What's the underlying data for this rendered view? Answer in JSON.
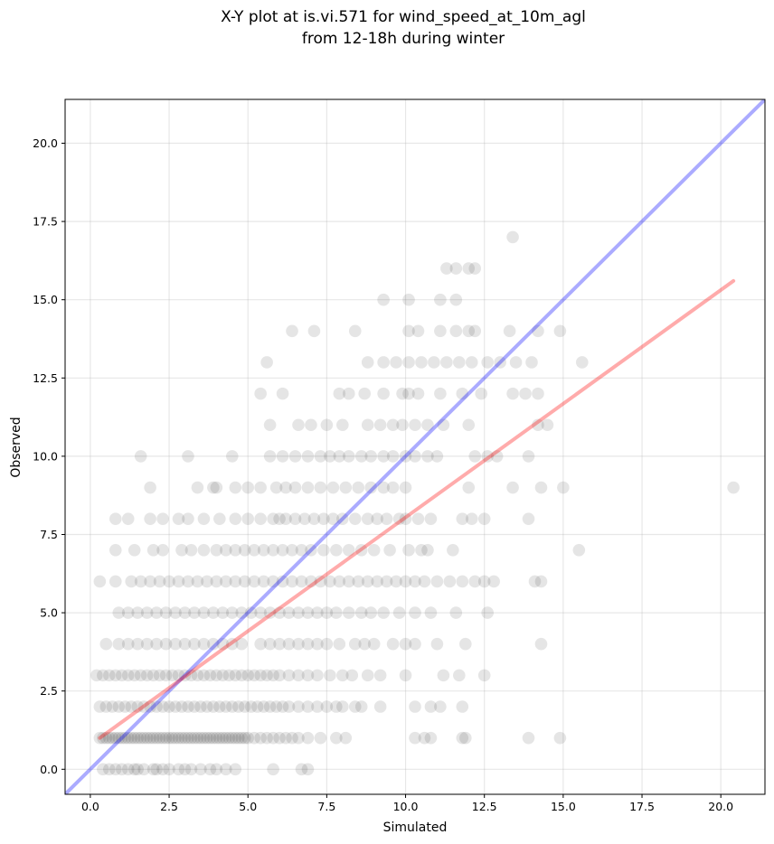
{
  "chart_data": {
    "type": "scatter",
    "title_line1": "X-Y plot at is.vi.571 for wind_speed_at_10m_agl",
    "title_line2": "from 12-18h during winter",
    "xlabel": "Simulated",
    "ylabel": "Observed",
    "xlim": [
      -0.8,
      21.4
    ],
    "ylim": [
      -0.8,
      21.4
    ],
    "xticks": [
      0.0,
      2.5,
      5.0,
      7.5,
      10.0,
      12.5,
      15.0,
      17.5,
      20.0
    ],
    "yticks": [
      0.0,
      2.5,
      5.0,
      7.5,
      10.0,
      12.5,
      15.0,
      17.5,
      20.0
    ],
    "xtick_labels": [
      "0.0",
      "2.5",
      "5.0",
      "7.5",
      "10.0",
      "12.5",
      "15.0",
      "17.5",
      "20.0"
    ],
    "ytick_labels": [
      "0.0",
      "2.5",
      "5.0",
      "7.5",
      "10.0",
      "12.5",
      "15.0",
      "17.5",
      "20.0"
    ],
    "grid": true,
    "point_color": "#000000",
    "point_alpha": 0.1,
    "identity_line": {
      "color": "#0000ff",
      "x": [
        -0.8,
        21.4
      ],
      "y": [
        -0.8,
        21.4
      ]
    },
    "fit_line": {
      "color": "#ff0000",
      "x": [
        0.3,
        20.4
      ],
      "y": [
        1.0,
        15.6
      ]
    },
    "points": [
      [
        0.4,
        0
      ],
      [
        0.6,
        0
      ],
      [
        0.8,
        0
      ],
      [
        1.0,
        0
      ],
      [
        1.2,
        0
      ],
      [
        1.4,
        0
      ],
      [
        1.5,
        0
      ],
      [
        1.7,
        0
      ],
      [
        2.0,
        0
      ],
      [
        2.1,
        0
      ],
      [
        2.3,
        0
      ],
      [
        2.5,
        0
      ],
      [
        2.8,
        0
      ],
      [
        3.0,
        0
      ],
      [
        3.2,
        0
      ],
      [
        3.5,
        0
      ],
      [
        3.8,
        0
      ],
      [
        4.0,
        0
      ],
      [
        4.3,
        0
      ],
      [
        4.6,
        0
      ],
      [
        5.8,
        0
      ],
      [
        6.7,
        0
      ],
      [
        6.9,
        0
      ],
      [
        0.3,
        1
      ],
      [
        0.4,
        1
      ],
      [
        0.5,
        1
      ],
      [
        0.6,
        1
      ],
      [
        0.7,
        1
      ],
      [
        0.8,
        1
      ],
      [
        0.9,
        1
      ],
      [
        1.0,
        1
      ],
      [
        1.1,
        1
      ],
      [
        1.2,
        1
      ],
      [
        1.3,
        1
      ],
      [
        1.4,
        1
      ],
      [
        1.5,
        1
      ],
      [
        1.6,
        1
      ],
      [
        1.7,
        1
      ],
      [
        1.8,
        1
      ],
      [
        1.9,
        1
      ],
      [
        2.0,
        1
      ],
      [
        2.1,
        1
      ],
      [
        2.2,
        1
      ],
      [
        2.3,
        1
      ],
      [
        2.4,
        1
      ],
      [
        2.5,
        1
      ],
      [
        2.6,
        1
      ],
      [
        2.7,
        1
      ],
      [
        2.8,
        1
      ],
      [
        2.9,
        1
      ],
      [
        3.0,
        1
      ],
      [
        3.1,
        1
      ],
      [
        3.2,
        1
      ],
      [
        3.3,
        1
      ],
      [
        3.4,
        1
      ],
      [
        3.5,
        1
      ],
      [
        3.6,
        1
      ],
      [
        3.7,
        1
      ],
      [
        3.8,
        1
      ],
      [
        3.9,
        1
      ],
      [
        4.0,
        1
      ],
      [
        4.1,
        1
      ],
      [
        4.2,
        1
      ],
      [
        4.3,
        1
      ],
      [
        4.4,
        1
      ],
      [
        4.5,
        1
      ],
      [
        4.6,
        1
      ],
      [
        4.7,
        1
      ],
      [
        4.8,
        1
      ],
      [
        4.9,
        1
      ],
      [
        5.0,
        1
      ],
      [
        5.2,
        1
      ],
      [
        5.4,
        1
      ],
      [
        5.6,
        1
      ],
      [
        5.8,
        1
      ],
      [
        6.0,
        1
      ],
      [
        6.2,
        1
      ],
      [
        6.4,
        1
      ],
      [
        6.6,
        1
      ],
      [
        6.9,
        1
      ],
      [
        7.3,
        1
      ],
      [
        7.8,
        1
      ],
      [
        8.1,
        1
      ],
      [
        10.3,
        1
      ],
      [
        10.6,
        1
      ],
      [
        10.8,
        1
      ],
      [
        11.8,
        1
      ],
      [
        11.9,
        1
      ],
      [
        13.9,
        1
      ],
      [
        14.9,
        1
      ],
      [
        0.3,
        2
      ],
      [
        0.5,
        2
      ],
      [
        0.7,
        2
      ],
      [
        0.9,
        2
      ],
      [
        1.1,
        2
      ],
      [
        1.3,
        2
      ],
      [
        1.5,
        2
      ],
      [
        1.7,
        2
      ],
      [
        1.9,
        2
      ],
      [
        2.1,
        2
      ],
      [
        2.3,
        2
      ],
      [
        2.5,
        2
      ],
      [
        2.7,
        2
      ],
      [
        2.9,
        2
      ],
      [
        3.1,
        2
      ],
      [
        3.3,
        2
      ],
      [
        3.5,
        2
      ],
      [
        3.7,
        2
      ],
      [
        3.9,
        2
      ],
      [
        4.1,
        2
      ],
      [
        4.3,
        2
      ],
      [
        4.5,
        2
      ],
      [
        4.7,
        2
      ],
      [
        4.9,
        2
      ],
      [
        5.1,
        2
      ],
      [
        5.3,
        2
      ],
      [
        5.5,
        2
      ],
      [
        5.7,
        2
      ],
      [
        5.9,
        2
      ],
      [
        6.1,
        2
      ],
      [
        6.3,
        2
      ],
      [
        6.6,
        2
      ],
      [
        6.9,
        2
      ],
      [
        7.2,
        2
      ],
      [
        7.5,
        2
      ],
      [
        7.8,
        2
      ],
      [
        8.0,
        2
      ],
      [
        8.4,
        2
      ],
      [
        8.6,
        2
      ],
      [
        9.2,
        2
      ],
      [
        10.3,
        2
      ],
      [
        10.8,
        2
      ],
      [
        11.1,
        2
      ],
      [
        11.8,
        2
      ],
      [
        0.2,
        3
      ],
      [
        0.4,
        3
      ],
      [
        0.6,
        3
      ],
      [
        0.8,
        3
      ],
      [
        1.0,
        3
      ],
      [
        1.2,
        3
      ],
      [
        1.4,
        3
      ],
      [
        1.6,
        3
      ],
      [
        1.8,
        3
      ],
      [
        2.0,
        3
      ],
      [
        2.2,
        3
      ],
      [
        2.4,
        3
      ],
      [
        2.6,
        3
      ],
      [
        2.8,
        3
      ],
      [
        3.0,
        3
      ],
      [
        3.2,
        3
      ],
      [
        3.4,
        3
      ],
      [
        3.6,
        3
      ],
      [
        3.8,
        3
      ],
      [
        4.0,
        3
      ],
      [
        4.2,
        3
      ],
      [
        4.4,
        3
      ],
      [
        4.6,
        3
      ],
      [
        4.8,
        3
      ],
      [
        5.0,
        3
      ],
      [
        5.2,
        3
      ],
      [
        5.4,
        3
      ],
      [
        5.6,
        3
      ],
      [
        5.8,
        3
      ],
      [
        6.0,
        3
      ],
      [
        6.3,
        3
      ],
      [
        6.6,
        3
      ],
      [
        6.9,
        3
      ],
      [
        7.2,
        3
      ],
      [
        7.6,
        3
      ],
      [
        8.0,
        3
      ],
      [
        8.3,
        3
      ],
      [
        8.8,
        3
      ],
      [
        9.2,
        3
      ],
      [
        10.0,
        3
      ],
      [
        11.2,
        3
      ],
      [
        11.7,
        3
      ],
      [
        12.5,
        3
      ],
      [
        0.5,
        4
      ],
      [
        0.9,
        4
      ],
      [
        1.2,
        4
      ],
      [
        1.5,
        4
      ],
      [
        1.8,
        4
      ],
      [
        2.1,
        4
      ],
      [
        2.4,
        4
      ],
      [
        2.7,
        4
      ],
      [
        3.0,
        4
      ],
      [
        3.3,
        4
      ],
      [
        3.6,
        4
      ],
      [
        3.9,
        4
      ],
      [
        4.2,
        4
      ],
      [
        4.5,
        4
      ],
      [
        4.8,
        4
      ],
      [
        5.4,
        4
      ],
      [
        5.7,
        4
      ],
      [
        6.0,
        4
      ],
      [
        6.3,
        4
      ],
      [
        6.6,
        4
      ],
      [
        6.9,
        4
      ],
      [
        7.2,
        4
      ],
      [
        7.5,
        4
      ],
      [
        7.9,
        4
      ],
      [
        8.4,
        4
      ],
      [
        8.7,
        4
      ],
      [
        9.0,
        4
      ],
      [
        9.6,
        4
      ],
      [
        10.0,
        4
      ],
      [
        10.3,
        4
      ],
      [
        11.0,
        4
      ],
      [
        11.9,
        4
      ],
      [
        14.3,
        4
      ],
      [
        0.9,
        5
      ],
      [
        1.2,
        5
      ],
      [
        1.5,
        5
      ],
      [
        1.8,
        5
      ],
      [
        2.1,
        5
      ],
      [
        2.4,
        5
      ],
      [
        2.7,
        5
      ],
      [
        3.0,
        5
      ],
      [
        3.3,
        5
      ],
      [
        3.6,
        5
      ],
      [
        3.9,
        5
      ],
      [
        4.2,
        5
      ],
      [
        4.5,
        5
      ],
      [
        4.8,
        5
      ],
      [
        5.1,
        5
      ],
      [
        5.4,
        5
      ],
      [
        5.7,
        5
      ],
      [
        6.0,
        5
      ],
      [
        6.3,
        5
      ],
      [
        6.6,
        5
      ],
      [
        6.9,
        5
      ],
      [
        7.2,
        5
      ],
      [
        7.5,
        5
      ],
      [
        7.8,
        5
      ],
      [
        8.2,
        5
      ],
      [
        8.6,
        5
      ],
      [
        8.9,
        5
      ],
      [
        9.3,
        5
      ],
      [
        9.8,
        5
      ],
      [
        10.3,
        5
      ],
      [
        10.8,
        5
      ],
      [
        11.6,
        5
      ],
      [
        12.6,
        5
      ],
      [
        0.3,
        6
      ],
      [
        0.8,
        6
      ],
      [
        1.3,
        6
      ],
      [
        1.6,
        6
      ],
      [
        1.9,
        6
      ],
      [
        2.2,
        6
      ],
      [
        2.5,
        6
      ],
      [
        2.8,
        6
      ],
      [
        3.1,
        6
      ],
      [
        3.4,
        6
      ],
      [
        3.7,
        6
      ],
      [
        4.0,
        6
      ],
      [
        4.3,
        6
      ],
      [
        4.6,
        6
      ],
      [
        4.9,
        6
      ],
      [
        5.2,
        6
      ],
      [
        5.5,
        6
      ],
      [
        5.8,
        6
      ],
      [
        6.1,
        6
      ],
      [
        6.4,
        6
      ],
      [
        6.7,
        6
      ],
      [
        7.0,
        6
      ],
      [
        7.3,
        6
      ],
      [
        7.6,
        6
      ],
      [
        7.9,
        6
      ],
      [
        8.2,
        6
      ],
      [
        8.5,
        6
      ],
      [
        8.8,
        6
      ],
      [
        9.1,
        6
      ],
      [
        9.4,
        6
      ],
      [
        9.7,
        6
      ],
      [
        10.0,
        6
      ],
      [
        10.3,
        6
      ],
      [
        10.6,
        6
      ],
      [
        11.0,
        6
      ],
      [
        11.4,
        6
      ],
      [
        11.8,
        6
      ],
      [
        12.2,
        6
      ],
      [
        12.5,
        6
      ],
      [
        12.8,
        6
      ],
      [
        14.1,
        6
      ],
      [
        14.3,
        6
      ],
      [
        0.8,
        7
      ],
      [
        1.4,
        7
      ],
      [
        2.0,
        7
      ],
      [
        2.3,
        7
      ],
      [
        2.9,
        7
      ],
      [
        3.2,
        7
      ],
      [
        3.6,
        7
      ],
      [
        4.0,
        7
      ],
      [
        4.3,
        7
      ],
      [
        4.6,
        7
      ],
      [
        4.9,
        7
      ],
      [
        5.2,
        7
      ],
      [
        5.5,
        7
      ],
      [
        5.8,
        7
      ],
      [
        6.1,
        7
      ],
      [
        6.4,
        7
      ],
      [
        6.7,
        7
      ],
      [
        7.0,
        7
      ],
      [
        7.4,
        7
      ],
      [
        7.8,
        7
      ],
      [
        8.2,
        7
      ],
      [
        8.6,
        7
      ],
      [
        9.0,
        7
      ],
      [
        9.5,
        7
      ],
      [
        10.1,
        7
      ],
      [
        10.5,
        7
      ],
      [
        10.7,
        7
      ],
      [
        11.5,
        7
      ],
      [
        15.5,
        7
      ],
      [
        0.8,
        8
      ],
      [
        1.2,
        8
      ],
      [
        1.9,
        8
      ],
      [
        2.3,
        8
      ],
      [
        2.8,
        8
      ],
      [
        3.1,
        8
      ],
      [
        3.6,
        8
      ],
      [
        4.1,
        8
      ],
      [
        4.6,
        8
      ],
      [
        5.0,
        8
      ],
      [
        5.4,
        8
      ],
      [
        5.8,
        8
      ],
      [
        6.0,
        8
      ],
      [
        6.2,
        8
      ],
      [
        6.5,
        8
      ],
      [
        6.8,
        8
      ],
      [
        7.1,
        8
      ],
      [
        7.4,
        8
      ],
      [
        7.7,
        8
      ],
      [
        8.0,
        8
      ],
      [
        8.4,
        8
      ],
      [
        8.8,
        8
      ],
      [
        9.1,
        8
      ],
      [
        9.4,
        8
      ],
      [
        9.8,
        8
      ],
      [
        10.0,
        8
      ],
      [
        10.4,
        8
      ],
      [
        10.8,
        8
      ],
      [
        11.8,
        8
      ],
      [
        12.1,
        8
      ],
      [
        12.5,
        8
      ],
      [
        13.9,
        8
      ],
      [
        1.9,
        9
      ],
      [
        3.4,
        9
      ],
      [
        3.9,
        9
      ],
      [
        4.0,
        9
      ],
      [
        4.6,
        9
      ],
      [
        5.0,
        9
      ],
      [
        5.4,
        9
      ],
      [
        5.9,
        9
      ],
      [
        6.2,
        9
      ],
      [
        6.5,
        9
      ],
      [
        6.9,
        9
      ],
      [
        7.3,
        9
      ],
      [
        7.7,
        9
      ],
      [
        8.1,
        9
      ],
      [
        8.5,
        9
      ],
      [
        8.9,
        9
      ],
      [
        9.3,
        9
      ],
      [
        9.6,
        9
      ],
      [
        10.0,
        9
      ],
      [
        12.0,
        9
      ],
      [
        13.4,
        9
      ],
      [
        14.3,
        9
      ],
      [
        15.0,
        9
      ],
      [
        20.4,
        9
      ],
      [
        1.6,
        10
      ],
      [
        3.1,
        10
      ],
      [
        4.5,
        10
      ],
      [
        5.7,
        10
      ],
      [
        6.1,
        10
      ],
      [
        6.5,
        10
      ],
      [
        6.9,
        10
      ],
      [
        7.3,
        10
      ],
      [
        7.6,
        10
      ],
      [
        7.9,
        10
      ],
      [
        8.2,
        10
      ],
      [
        8.6,
        10
      ],
      [
        8.9,
        10
      ],
      [
        9.3,
        10
      ],
      [
        9.6,
        10
      ],
      [
        10.0,
        10
      ],
      [
        10.3,
        10
      ],
      [
        10.7,
        10
      ],
      [
        11.0,
        10
      ],
      [
        12.2,
        10
      ],
      [
        12.6,
        10
      ],
      [
        12.9,
        10
      ],
      [
        13.9,
        10
      ],
      [
        5.7,
        11
      ],
      [
        6.6,
        11
      ],
      [
        7.0,
        11
      ],
      [
        7.5,
        11
      ],
      [
        8.0,
        11
      ],
      [
        8.8,
        11
      ],
      [
        9.2,
        11
      ],
      [
        9.6,
        11
      ],
      [
        9.9,
        11
      ],
      [
        10.3,
        11
      ],
      [
        10.7,
        11
      ],
      [
        11.2,
        11
      ],
      [
        12.0,
        11
      ],
      [
        14.2,
        11
      ],
      [
        14.5,
        11
      ],
      [
        5.4,
        12
      ],
      [
        6.1,
        12
      ],
      [
        7.9,
        12
      ],
      [
        8.2,
        12
      ],
      [
        8.7,
        12
      ],
      [
        9.3,
        12
      ],
      [
        9.9,
        12
      ],
      [
        10.1,
        12
      ],
      [
        10.4,
        12
      ],
      [
        11.1,
        12
      ],
      [
        11.8,
        12
      ],
      [
        12.4,
        12
      ],
      [
        13.4,
        12
      ],
      [
        13.8,
        12
      ],
      [
        14.2,
        12
      ],
      [
        5.6,
        13
      ],
      [
        8.8,
        13
      ],
      [
        9.3,
        13
      ],
      [
        9.7,
        13
      ],
      [
        10.1,
        13
      ],
      [
        10.5,
        13
      ],
      [
        10.9,
        13
      ],
      [
        11.3,
        13
      ],
      [
        11.7,
        13
      ],
      [
        12.1,
        13
      ],
      [
        12.6,
        13
      ],
      [
        13.0,
        13
      ],
      [
        13.5,
        13
      ],
      [
        14.0,
        13
      ],
      [
        15.6,
        13
      ],
      [
        6.4,
        14
      ],
      [
        7.1,
        14
      ],
      [
        8.4,
        14
      ],
      [
        10.1,
        14
      ],
      [
        10.4,
        14
      ],
      [
        11.1,
        14
      ],
      [
        11.6,
        14
      ],
      [
        12.0,
        14
      ],
      [
        12.2,
        14
      ],
      [
        13.3,
        14
      ],
      [
        14.2,
        14
      ],
      [
        14.9,
        14
      ],
      [
        9.3,
        15
      ],
      [
        10.1,
        15
      ],
      [
        11.1,
        15
      ],
      [
        11.6,
        15
      ],
      [
        11.3,
        16
      ],
      [
        11.6,
        16
      ],
      [
        12.0,
        16
      ],
      [
        12.2,
        16
      ],
      [
        13.4,
        17
      ]
    ]
  }
}
